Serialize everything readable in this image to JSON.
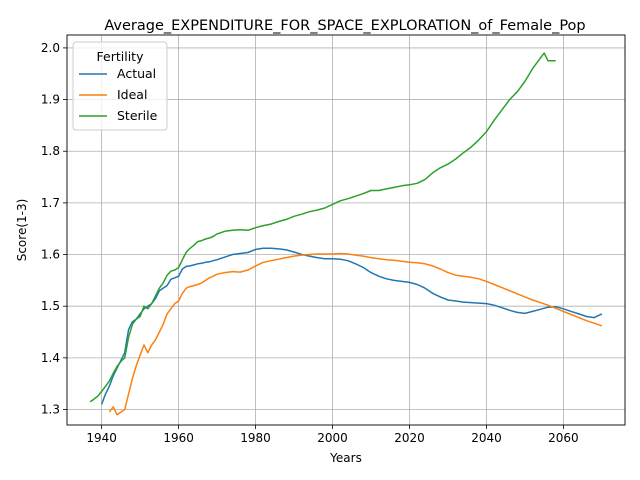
{
  "chart_data": {
    "type": "line",
    "title": "Average_EXPENDITURE_FOR_SPACE_EXPLORATION_of_Female_Pop",
    "xlabel": "Years",
    "ylabel": "Score(1-3)",
    "xlim": [
      1931,
      2076
    ],
    "ylim": [
      1.27,
      2.025
    ],
    "xticks": [
      1940,
      1960,
      1980,
      2000,
      2020,
      2040,
      2060
    ],
    "yticks": [
      1.3,
      1.4,
      1.5,
      1.6,
      1.7,
      1.8,
      1.9,
      2.0
    ],
    "grid": true,
    "legend": {
      "title": "Fertility",
      "placement": "top-left"
    },
    "series": [
      {
        "name": "Actual",
        "color": "#1f77b4",
        "points": [
          [
            1940,
            1.31
          ],
          [
            1941,
            1.33
          ],
          [
            1942,
            1.345
          ],
          [
            1943,
            1.365
          ],
          [
            1944,
            1.38
          ],
          [
            1945,
            1.395
          ],
          [
            1946,
            1.41
          ],
          [
            1947,
            1.455
          ],
          [
            1948,
            1.47
          ],
          [
            1949,
            1.475
          ],
          [
            1950,
            1.485
          ],
          [
            1951,
            1.495
          ],
          [
            1952,
            1.5
          ],
          [
            1953,
            1.505
          ],
          [
            1954,
            1.515
          ],
          [
            1955,
            1.53
          ],
          [
            1956,
            1.535
          ],
          [
            1957,
            1.54
          ],
          [
            1958,
            1.552
          ],
          [
            1959,
            1.555
          ],
          [
            1960,
            1.558
          ],
          [
            1961,
            1.572
          ],
          [
            1962,
            1.577
          ],
          [
            1963,
            1.578
          ],
          [
            1964,
            1.58
          ],
          [
            1965,
            1.582
          ],
          [
            1966,
            1.583
          ],
          [
            1967,
            1.585
          ],
          [
            1968,
            1.586
          ],
          [
            1969,
            1.588
          ],
          [
            1970,
            1.59
          ],
          [
            1972,
            1.595
          ],
          [
            1974,
            1.6
          ],
          [
            1976,
            1.602
          ],
          [
            1978,
            1.604
          ],
          [
            1980,
            1.61
          ],
          [
            1982,
            1.612
          ],
          [
            1984,
            1.612
          ],
          [
            1986,
            1.611
          ],
          [
            1988,
            1.609
          ],
          [
            1990,
            1.605
          ],
          [
            1992,
            1.6
          ],
          [
            1994,
            1.597
          ],
          [
            1996,
            1.594
          ],
          [
            1998,
            1.592
          ],
          [
            2000,
            1.592
          ],
          [
            2002,
            1.591
          ],
          [
            2004,
            1.588
          ],
          [
            2006,
            1.582
          ],
          [
            2008,
            1.575
          ],
          [
            2010,
            1.565
          ],
          [
            2012,
            1.558
          ],
          [
            2014,
            1.553
          ],
          [
            2016,
            1.55
          ],
          [
            2018,
            1.548
          ],
          [
            2020,
            1.546
          ],
          [
            2022,
            1.542
          ],
          [
            2024,
            1.535
          ],
          [
            2026,
            1.525
          ],
          [
            2028,
            1.518
          ],
          [
            2030,
            1.512
          ],
          [
            2032,
            1.51
          ],
          [
            2034,
            1.508
          ],
          [
            2036,
            1.507
          ],
          [
            2038,
            1.506
          ],
          [
            2040,
            1.505
          ],
          [
            2042,
            1.502
          ],
          [
            2044,
            1.497
          ],
          [
            2046,
            1.492
          ],
          [
            2048,
            1.488
          ],
          [
            2050,
            1.486
          ],
          [
            2052,
            1.49
          ],
          [
            2054,
            1.494
          ],
          [
            2056,
            1.498
          ],
          [
            2058,
            1.499
          ],
          [
            2060,
            1.495
          ],
          [
            2062,
            1.49
          ],
          [
            2064,
            1.485
          ],
          [
            2066,
            1.48
          ],
          [
            2068,
            1.478
          ],
          [
            2070,
            1.485
          ]
        ]
      },
      {
        "name": "Ideal",
        "color": "#ff7f0e",
        "points": [
          [
            1942,
            1.295
          ],
          [
            1943,
            1.305
          ],
          [
            1944,
            1.29
          ],
          [
            1945,
            1.295
          ],
          [
            1946,
            1.3
          ],
          [
            1947,
            1.33
          ],
          [
            1948,
            1.36
          ],
          [
            1949,
            1.385
          ],
          [
            1950,
            1.405
          ],
          [
            1951,
            1.425
          ],
          [
            1952,
            1.41
          ],
          [
            1953,
            1.425
          ],
          [
            1954,
            1.435
          ],
          [
            1955,
            1.45
          ],
          [
            1956,
            1.465
          ],
          [
            1957,
            1.485
          ],
          [
            1958,
            1.495
          ],
          [
            1959,
            1.505
          ],
          [
            1960,
            1.51
          ],
          [
            1961,
            1.525
          ],
          [
            1962,
            1.535
          ],
          [
            1963,
            1.538
          ],
          [
            1964,
            1.54
          ],
          [
            1965,
            1.542
          ],
          [
            1966,
            1.545
          ],
          [
            1967,
            1.55
          ],
          [
            1968,
            1.555
          ],
          [
            1969,
            1.558
          ],
          [
            1970,
            1.562
          ],
          [
            1972,
            1.565
          ],
          [
            1974,
            1.567
          ],
          [
            1976,
            1.566
          ],
          [
            1978,
            1.57
          ],
          [
            1980,
            1.578
          ],
          [
            1982,
            1.585
          ],
          [
            1984,
            1.588
          ],
          [
            1986,
            1.591
          ],
          [
            1988,
            1.594
          ],
          [
            1990,
            1.597
          ],
          [
            1992,
            1.599
          ],
          [
            1994,
            1.6
          ],
          [
            1996,
            1.601
          ],
          [
            1998,
            1.601
          ],
          [
            2000,
            1.601
          ],
          [
            2002,
            1.602
          ],
          [
            2004,
            1.601
          ],
          [
            2006,
            1.599
          ],
          [
            2008,
            1.597
          ],
          [
            2010,
            1.594
          ],
          [
            2012,
            1.592
          ],
          [
            2014,
            1.59
          ],
          [
            2016,
            1.589
          ],
          [
            2018,
            1.587
          ],
          [
            2020,
            1.585
          ],
          [
            2022,
            1.584
          ],
          [
            2024,
            1.582
          ],
          [
            2026,
            1.578
          ],
          [
            2028,
            1.572
          ],
          [
            2030,
            1.565
          ],
          [
            2032,
            1.56
          ],
          [
            2034,
            1.558
          ],
          [
            2036,
            1.556
          ],
          [
            2038,
            1.553
          ],
          [
            2040,
            1.548
          ],
          [
            2042,
            1.542
          ],
          [
            2044,
            1.536
          ],
          [
            2046,
            1.53
          ],
          [
            2048,
            1.524
          ],
          [
            2050,
            1.518
          ],
          [
            2052,
            1.512
          ],
          [
            2054,
            1.507
          ],
          [
            2056,
            1.502
          ],
          [
            2058,
            1.496
          ],
          [
            2060,
            1.49
          ],
          [
            2062,
            1.484
          ],
          [
            2064,
            1.478
          ],
          [
            2066,
            1.472
          ],
          [
            2068,
            1.467
          ],
          [
            2070,
            1.462
          ]
        ]
      },
      {
        "name": "Sterile",
        "color": "#2ca02c",
        "points": [
          [
            1937,
            1.315
          ],
          [
            1938,
            1.32
          ],
          [
            1939,
            1.326
          ],
          [
            1940,
            1.335
          ],
          [
            1941,
            1.345
          ],
          [
            1942,
            1.355
          ],
          [
            1943,
            1.37
          ],
          [
            1944,
            1.383
          ],
          [
            1945,
            1.393
          ],
          [
            1946,
            1.4
          ],
          [
            1947,
            1.44
          ],
          [
            1948,
            1.465
          ],
          [
            1949,
            1.475
          ],
          [
            1950,
            1.48
          ],
          [
            1951,
            1.5
          ],
          [
            1952,
            1.495
          ],
          [
            1953,
            1.505
          ],
          [
            1954,
            1.52
          ],
          [
            1955,
            1.535
          ],
          [
            1956,
            1.545
          ],
          [
            1957,
            1.56
          ],
          [
            1958,
            1.568
          ],
          [
            1959,
            1.57
          ],
          [
            1960,
            1.575
          ],
          [
            1961,
            1.59
          ],
          [
            1962,
            1.605
          ],
          [
            1963,
            1.612
          ],
          [
            1964,
            1.618
          ],
          [
            1965,
            1.625
          ],
          [
            1966,
            1.627
          ],
          [
            1967,
            1.63
          ],
          [
            1968,
            1.632
          ],
          [
            1969,
            1.635
          ],
          [
            1970,
            1.64
          ],
          [
            1972,
            1.645
          ],
          [
            1974,
            1.647
          ],
          [
            1976,
            1.648
          ],
          [
            1978,
            1.647
          ],
          [
            1980,
            1.652
          ],
          [
            1982,
            1.656
          ],
          [
            1984,
            1.659
          ],
          [
            1986,
            1.664
          ],
          [
            1988,
            1.668
          ],
          [
            1990,
            1.674
          ],
          [
            1992,
            1.678
          ],
          [
            1994,
            1.683
          ],
          [
            1996,
            1.686
          ],
          [
            1998,
            1.69
          ],
          [
            2000,
            1.697
          ],
          [
            2002,
            1.704
          ],
          [
            2004,
            1.708
          ],
          [
            2006,
            1.713
          ],
          [
            2008,
            1.718
          ],
          [
            2010,
            1.724
          ],
          [
            2012,
            1.724
          ],
          [
            2014,
            1.727
          ],
          [
            2016,
            1.73
          ],
          [
            2018,
            1.733
          ],
          [
            2020,
            1.735
          ],
          [
            2022,
            1.738
          ],
          [
            2024,
            1.745
          ],
          [
            2026,
            1.758
          ],
          [
            2028,
            1.768
          ],
          [
            2030,
            1.775
          ],
          [
            2032,
            1.785
          ],
          [
            2034,
            1.797
          ],
          [
            2036,
            1.808
          ],
          [
            2038,
            1.822
          ],
          [
            2040,
            1.838
          ],
          [
            2042,
            1.86
          ],
          [
            2044,
            1.88
          ],
          [
            2046,
            1.9
          ],
          [
            2048,
            1.915
          ],
          [
            2050,
            1.935
          ],
          [
            2052,
            1.96
          ],
          [
            2054,
            1.98
          ],
          [
            2055,
            1.99
          ],
          [
            2056,
            1.975
          ],
          [
            2058,
            1.975
          ]
        ]
      }
    ]
  }
}
